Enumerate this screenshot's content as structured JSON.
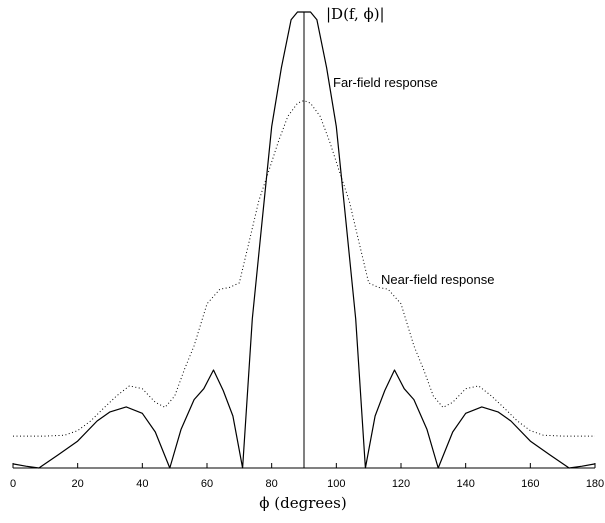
{
  "chart_data": {
    "type": "line",
    "title": "",
    "xlabel": "ϕ (degrees)",
    "ylabel": "|D(f, ϕ)|",
    "xlim": [
      0,
      180
    ],
    "xticks": [
      "0",
      "20",
      "40",
      "60",
      "80",
      "100",
      "120",
      "140",
      "160",
      "180"
    ],
    "grid": false,
    "annotations": [
      "Far-field response",
      "Near-field response"
    ],
    "series": [
      {
        "name": "Far-field response",
        "style": "solid",
        "color": "#000000",
        "x": [
          0,
          4,
          8,
          14,
          20,
          26,
          30,
          35,
          40,
          44,
          48.5,
          52,
          56,
          59,
          62,
          65,
          68,
          71,
          74,
          77,
          80,
          83,
          86,
          88,
          90,
          92,
          94,
          97,
          100,
          103,
          106,
          109,
          112,
          115,
          118,
          121,
          124,
          128,
          131.5,
          136,
          140,
          145,
          150,
          154,
          160,
          166,
          172,
          176,
          180
        ],
        "y": [
          0.009,
          0.004,
          0,
          0.029,
          0.059,
          0.103,
          0.123,
          0.134,
          0.12,
          0.079,
          0,
          0.085,
          0.15,
          0.174,
          0.215,
          0.17,
          0.114,
          0,
          0.327,
          0.539,
          0.749,
          0.878,
          0.983,
          1.0,
          1.0,
          1.0,
          0.983,
          0.878,
          0.749,
          0.539,
          0.327,
          0,
          0.114,
          0.17,
          0.215,
          0.174,
          0.15,
          0.085,
          0,
          0.079,
          0.12,
          0.134,
          0.123,
          0.103,
          0.059,
          0.029,
          0,
          0.004,
          0.009
        ]
      },
      {
        "name": "Near-field response",
        "style": "dotted",
        "color": "#000000",
        "x": [
          0,
          10,
          16,
          20,
          24,
          28,
          32,
          36,
          40,
          44,
          47,
          50,
          53,
          56,
          60,
          64,
          67,
          70,
          73,
          76,
          79,
          82,
          85,
          88,
          90,
          92,
          95,
          98,
          101,
          104,
          107,
          110,
          113,
          116,
          120,
          124,
          127,
          130,
          133,
          136,
          140,
          144,
          148,
          152,
          156,
          160,
          164,
          170,
          180
        ],
        "y": [
          0.07,
          0.07,
          0.072,
          0.082,
          0.103,
          0.131,
          0.158,
          0.18,
          0.174,
          0.144,
          0.133,
          0.158,
          0.216,
          0.268,
          0.36,
          0.392,
          0.396,
          0.406,
          0.495,
          0.585,
          0.649,
          0.714,
          0.771,
          0.8,
          0.806,
          0.8,
          0.771,
          0.714,
          0.649,
          0.585,
          0.495,
          0.406,
          0.396,
          0.392,
          0.36,
          0.268,
          0.216,
          0.158,
          0.133,
          0.144,
          0.174,
          0.18,
          0.158,
          0.131,
          0.103,
          0.082,
          0.072,
          0.07,
          0.07
        ]
      }
    ],
    "vertical_line_x": 90
  }
}
